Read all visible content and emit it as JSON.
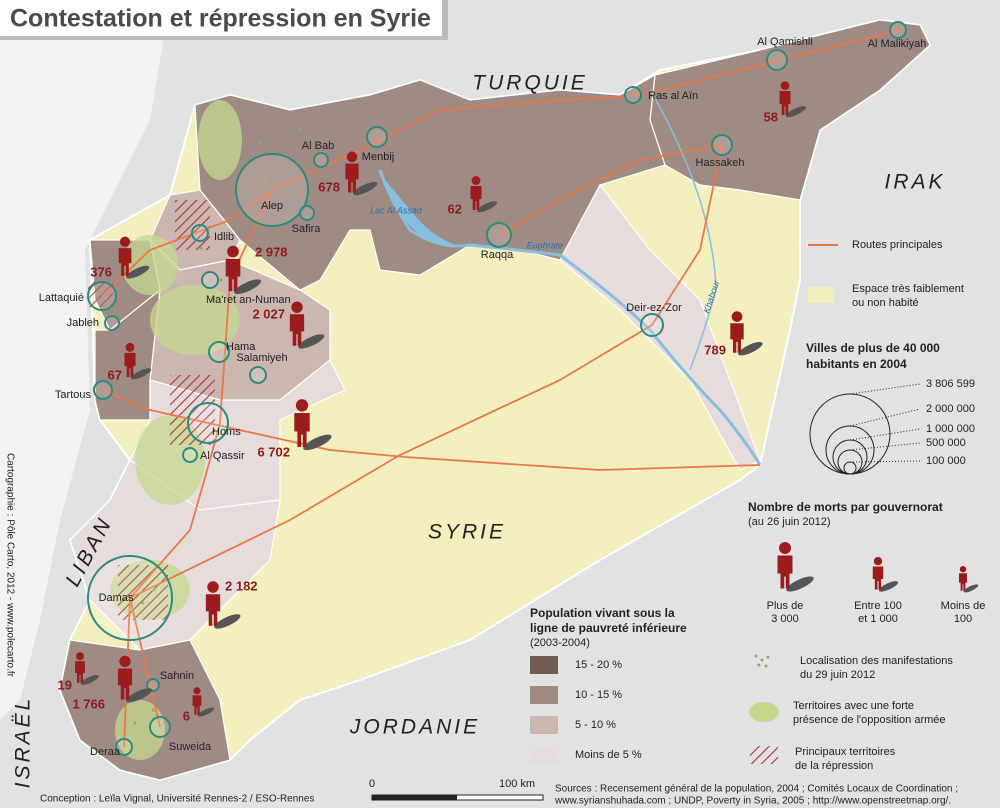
{
  "title": "Contestation et répression en Syrie",
  "countries": [
    "TURQUIE",
    "IRAK",
    "SYRIE",
    "JORDANIE",
    "LIBAN",
    "ISRAËL"
  ],
  "water": [
    "Lac Al Assad",
    "Euphrate",
    "Khabour"
  ],
  "cities": [
    "Al Qamishli",
    "Al Malikiyah",
    "Ras al Aïn",
    "Hassakeh",
    "Al Bab",
    "Menbij",
    "Alep",
    "Safira",
    "Raqqa",
    "Idlib",
    "Ma'ret an-Numan",
    "Lattaquié",
    "Jableh",
    "Hama",
    "Salamiyeh",
    "Tartous",
    "Homs",
    "Al Qassir",
    "Deir-ez-Zor",
    "Damas",
    "Sahnin",
    "Deraa",
    "Suweida"
  ],
  "deaths": [
    678,
    62,
    58,
    376,
    {
      "value": 2978,
      "label": "2 978"
    },
    {
      "value": 2027,
      "label": "2 027"
    },
    67,
    {
      "value": 6702,
      "label": "6 702"
    },
    789,
    {
      "value": 2182,
      "label": "2 182"
    },
    19,
    {
      "value": 1766,
      "label": "1 766"
    },
    6
  ],
  "legend": {
    "roads": "Routes principales",
    "desert": [
      "Espace très faiblement",
      "ou non habité"
    ],
    "cities_title": [
      "Villes de plus de 40 000",
      "habitants en 2004"
    ],
    "city_sizes": [
      "3 806 599",
      "2 000 000",
      "1 000 000",
      "500 000",
      "100 000"
    ],
    "deaths_title": "Nombre de morts par gouvernorat",
    "deaths_date": "(au 26 juin 2012)",
    "death_classes": [
      [
        "Plus de",
        "3 000"
      ],
      [
        "Entre 100",
        "et 1 000"
      ],
      [
        "Moins de",
        "100"
      ]
    ],
    "poverty_title": [
      "Population vivant sous la",
      "ligne de pauvreté inférieure"
    ],
    "poverty_period": "(2003-2004)",
    "poverty_classes": [
      {
        "label": "15 - 20 %",
        "color": "#6f5d55"
      },
      {
        "label": "10 - 15 %",
        "color": "#a08b84"
      },
      {
        "label": "5 - 10 %",
        "color": "#cbb6b0"
      },
      {
        "label": "Moins de 5 %",
        "color": "#e7dcdc"
      }
    ],
    "protests": [
      "Localisation des manifestations",
      "du 29 juin 2012"
    ],
    "opposition": [
      "Territoires avec une forte",
      "présence de l'opposition armée"
    ],
    "repression": [
      "Principaux territoires",
      "de la répression"
    ]
  },
  "scale": {
    "start": 0,
    "end": "100 km"
  },
  "credits": {
    "sources": [
      "Sources : Recensement général de la population, 2004 ; Comités Locaux de Coordination ;",
      "www.syrianshuhada.com ; UNDP, Poverty in Syria, 2005 ; http://www.openstreetmap.org/."
    ],
    "conception": "Conception : Leïla Vignal, Université Rennes-2 / ESO-Rennes",
    "cartography": "Cartographie : Pôle Carto, 2012 - www.polecarto.fr"
  }
}
